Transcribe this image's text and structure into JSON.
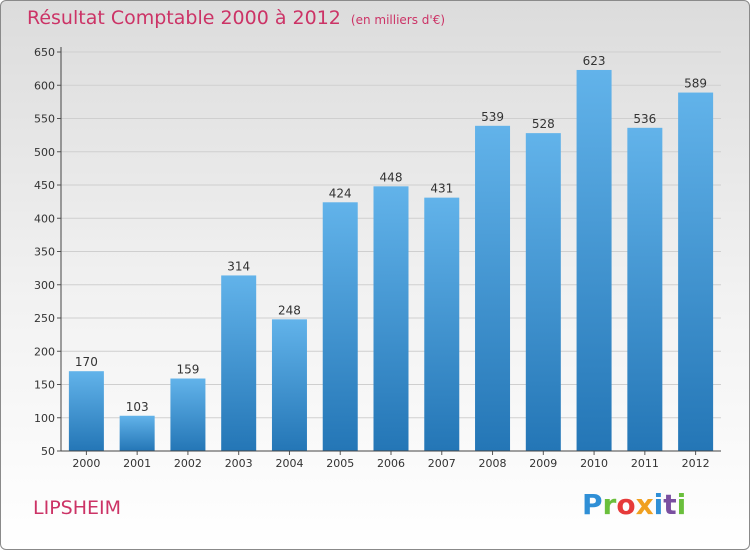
{
  "title": "Résultat Comptable 2000 à 2012",
  "unit": "(en milliers d'€)",
  "commune": "LIPSHEIM",
  "logo": {
    "text": "Proxiti",
    "colors": [
      "#2f8fd6",
      "#6abf3c",
      "#e63a3a",
      "#f0a020",
      "#2f8fd6",
      "#7a4fa0",
      "#6abf3c"
    ]
  },
  "colors": {
    "title": "#cc3366",
    "bar_light": "#62b3ea",
    "bar_dark": "#2476b6",
    "grid": "#cfcfcf",
    "axis_text": "#333333"
  },
  "chart_data": {
    "type": "bar",
    "categories": [
      "2000",
      "2001",
      "2002",
      "2003",
      "2004",
      "2005",
      "2006",
      "2007",
      "2008",
      "2009",
      "2010",
      "2011",
      "2012"
    ],
    "values": [
      170,
      103,
      159,
      314,
      248,
      424,
      448,
      431,
      539,
      528,
      623,
      536,
      589
    ],
    "data_labels": [
      "170",
      "103",
      "159",
      "314",
      "248",
      "424",
      "448",
      "431",
      "539",
      "528",
      "623",
      "536",
      "589"
    ],
    "yticks": [
      50,
      100,
      150,
      200,
      250,
      300,
      350,
      400,
      450,
      500,
      550,
      600,
      650
    ],
    "ylim": [
      50,
      650
    ],
    "grid": true,
    "legend": "none"
  }
}
